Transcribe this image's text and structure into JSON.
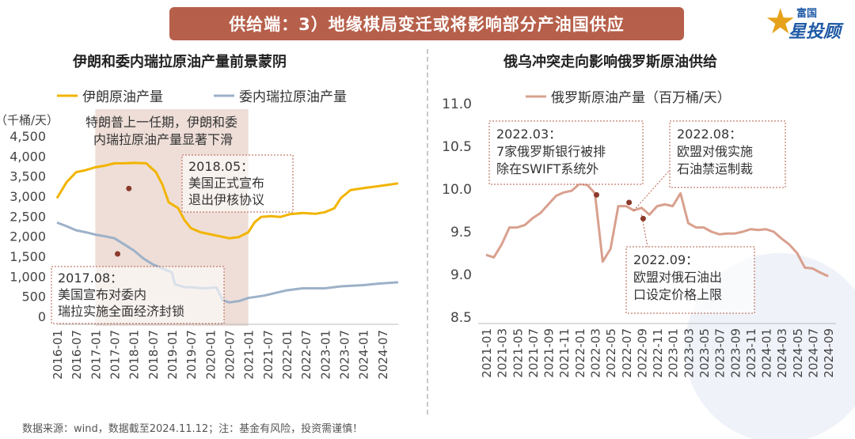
{
  "header": {
    "title": "供给端：3）地缘棋局变迁或将影响部分产油国供应",
    "logo_small": "富国",
    "logo_big": "星投顾"
  },
  "footer": {
    "note": "数据来源：wind，数据截至2024.11.12；注：基金有风险，投资需谨慎！"
  },
  "colors": {
    "iran": "#f2b400",
    "venezuela": "#9db1c8",
    "russia": "#d9a08e",
    "shade": "#e8d3c9",
    "title_bg": "#b65f4a"
  },
  "chart_data": [
    {
      "type": "line",
      "title": "伊朗和委内瑞拉原油产量前景蒙阴",
      "ylabel": "（千桶/天）",
      "ylim": [
        0,
        4500
      ],
      "yticks": [
        "4,500",
        "4,000",
        "3,500",
        "3,000",
        "2,500",
        "2,000",
        "1,500",
        "1,000",
        "500",
        "0"
      ],
      "x_start": "2016-01",
      "x_end": "2024-12",
      "xticks": [
        "2016-01",
        "2016-07",
        "2017-01",
        "2017-07",
        "2018-01",
        "2018-07",
        "2019-01",
        "2019-07",
        "2020-01",
        "2020-07",
        "2021-01",
        "2021-07",
        "2022-01",
        "2022-07",
        "2023-01",
        "2023-07",
        "2024-01",
        "2024-07"
      ],
      "legend": [
        "伊朗原油产量",
        "委内瑞拉原油产量"
      ],
      "shaded_range": [
        "2017-01",
        "2021-01"
      ],
      "series": [
        {
          "name": "伊朗原油产量",
          "points": [
            [
              "2016-01",
              2950
            ],
            [
              "2016-04",
              3350
            ],
            [
              "2016-07",
              3600
            ],
            [
              "2016-10",
              3650
            ],
            [
              "2017-01",
              3720
            ],
            [
              "2017-04",
              3760
            ],
            [
              "2017-07",
              3820
            ],
            [
              "2017-10",
              3820
            ],
            [
              "2018-01",
              3830
            ],
            [
              "2018-05",
              3820
            ],
            [
              "2018-08",
              3600
            ],
            [
              "2018-10",
              3300
            ],
            [
              "2018-12",
              2850
            ],
            [
              "2019-03",
              2700
            ],
            [
              "2019-05",
              2400
            ],
            [
              "2019-07",
              2200
            ],
            [
              "2019-10",
              2100
            ],
            [
              "2020-01",
              2050
            ],
            [
              "2020-04",
              2000
            ],
            [
              "2020-07",
              1950
            ],
            [
              "2020-10",
              1980
            ],
            [
              "2021-01",
              2100
            ],
            [
              "2021-03",
              2350
            ],
            [
              "2021-05",
              2480
            ],
            [
              "2021-08",
              2500
            ],
            [
              "2021-11",
              2480
            ],
            [
              "2022-02",
              2550
            ],
            [
              "2022-06",
              2580
            ],
            [
              "2022-10",
              2560
            ],
            [
              "2023-01",
              2600
            ],
            [
              "2023-04",
              2700
            ],
            [
              "2023-06",
              2950
            ],
            [
              "2023-09",
              3150
            ],
            [
              "2024-01",
              3200
            ],
            [
              "2024-06",
              3250
            ],
            [
              "2024-12",
              3320
            ]
          ]
        },
        {
          "name": "委内瑞拉原油产量",
          "points": [
            [
              "2016-01",
              2340
            ],
            [
              "2016-04",
              2250
            ],
            [
              "2016-07",
              2150
            ],
            [
              "2016-10",
              2100
            ],
            [
              "2017-01",
              2040
            ],
            [
              "2017-04",
              2000
            ],
            [
              "2017-07",
              1950
            ],
            [
              "2017-10",
              1800
            ],
            [
              "2018-01",
              1650
            ],
            [
              "2018-04",
              1450
            ],
            [
              "2018-07",
              1300
            ],
            [
              "2018-10",
              1200
            ],
            [
              "2019-01",
              1100
            ],
            [
              "2019-02",
              800
            ],
            [
              "2019-05",
              730
            ],
            [
              "2019-08",
              720
            ],
            [
              "2019-11",
              700
            ],
            [
              "2020-03",
              720
            ],
            [
              "2020-05",
              400
            ],
            [
              "2020-07",
              350
            ],
            [
              "2020-10",
              380
            ],
            [
              "2021-01",
              460
            ],
            [
              "2021-06",
              520
            ],
            [
              "2022-01",
              650
            ],
            [
              "2022-06",
              700
            ],
            [
              "2023-01",
              700
            ],
            [
              "2023-06",
              750
            ],
            [
              "2024-01",
              780
            ],
            [
              "2024-06",
              820
            ],
            [
              "2024-12",
              850
            ]
          ]
        }
      ],
      "annotations": [
        {
          "text": [
            "特朗普上一任期，伊朗和委",
            "内瑞拉原油产量显著下滑"
          ],
          "target": null
        },
        {
          "text": [
            "2018.05：",
            "美国正式宣布",
            "退出伊核协议"
          ],
          "target": [
            "2018-05",
            3250
          ]
        },
        {
          "text": [
            "2017.08：",
            "美国宣布对委内",
            "瑞拉实施全面经济封锁"
          ],
          "target": [
            "2017-08",
            1550
          ]
        }
      ]
    },
    {
      "type": "line",
      "title": "俄乌冲突走向影响俄罗斯原油供给",
      "ylim": [
        8.5,
        11.0
      ],
      "yticks": [
        "11.0",
        "10.5",
        "10.0",
        "9.5",
        "9.0",
        "8.5"
      ],
      "x_start": "2021-01",
      "x_end": "2024-10",
      "xticks": [
        "2021-01",
        "2021-03",
        "2021-05",
        "2021-07",
        "2021-09",
        "2021-11",
        "2022-01",
        "2022-03",
        "2022-05",
        "2022-07",
        "2022-09",
        "2022-11",
        "2023-01",
        "2023-03",
        "2023-05",
        "2023-07",
        "2023-09",
        "2023-11",
        "2024-01",
        "2024-03",
        "2024-05",
        "2024-07",
        "2024-09"
      ],
      "legend": [
        "俄罗斯原油产量（百万桶/天）"
      ],
      "series": [
        {
          "name": "俄罗斯原油产量（百万桶/天）",
          "points": [
            [
              "2021-01",
              9.23
            ],
            [
              "2021-02",
              9.2
            ],
            [
              "2021-03",
              9.35
            ],
            [
              "2021-04",
              9.55
            ],
            [
              "2021-05",
              9.55
            ],
            [
              "2021-06",
              9.58
            ],
            [
              "2021-07",
              9.66
            ],
            [
              "2021-08",
              9.72
            ],
            [
              "2021-09",
              9.82
            ],
            [
              "2021-10",
              9.92
            ],
            [
              "2021-11",
              9.96
            ],
            [
              "2021-12",
              9.98
            ],
            [
              "2022-01",
              10.06
            ],
            [
              "2022-02",
              10.05
            ],
            [
              "2022-03",
              9.95
            ],
            [
              "2022-04",
              9.15
            ],
            [
              "2022-05",
              9.3
            ],
            [
              "2022-06",
              9.8
            ],
            [
              "2022-07",
              9.8
            ],
            [
              "2022-08",
              9.75
            ],
            [
              "2022-09",
              9.78
            ],
            [
              "2022-10",
              9.7
            ],
            [
              "2022-11",
              9.8
            ],
            [
              "2022-12",
              9.82
            ],
            [
              "2023-01",
              9.8
            ],
            [
              "2023-02",
              9.95
            ],
            [
              "2023-03",
              9.6
            ],
            [
              "2023-04",
              9.55
            ],
            [
              "2023-05",
              9.55
            ],
            [
              "2023-06",
              9.5
            ],
            [
              "2023-07",
              9.47
            ],
            [
              "2023-08",
              9.48
            ],
            [
              "2023-09",
              9.48
            ],
            [
              "2023-10",
              9.5
            ],
            [
              "2023-11",
              9.53
            ],
            [
              "2023-12",
              9.52
            ],
            [
              "2024-01",
              9.53
            ],
            [
              "2024-02",
              9.5
            ],
            [
              "2024-03",
              9.42
            ],
            [
              "2024-04",
              9.35
            ],
            [
              "2024-05",
              9.25
            ],
            [
              "2024-06",
              9.08
            ],
            [
              "2024-07",
              9.07
            ],
            [
              "2024-08",
              9.02
            ],
            [
              "2024-09",
              8.98
            ]
          ]
        }
      ],
      "annotations": [
        {
          "text": [
            "2022.03：",
            "7家俄罗斯银行被排",
            "除在SWIFT系统外"
          ],
          "target": [
            "2022-03",
            9.95
          ]
        },
        {
          "text": [
            "2022.08：",
            "欧盟对俄实施",
            "石油禁运制裁"
          ],
          "target": [
            "2022-08",
            9.75
          ]
        },
        {
          "text": [
            "2022.09：",
            "欧盟对俄石油出",
            "口设定价格上限"
          ],
          "target": [
            "2022-09",
            9.7
          ]
        }
      ]
    }
  ]
}
